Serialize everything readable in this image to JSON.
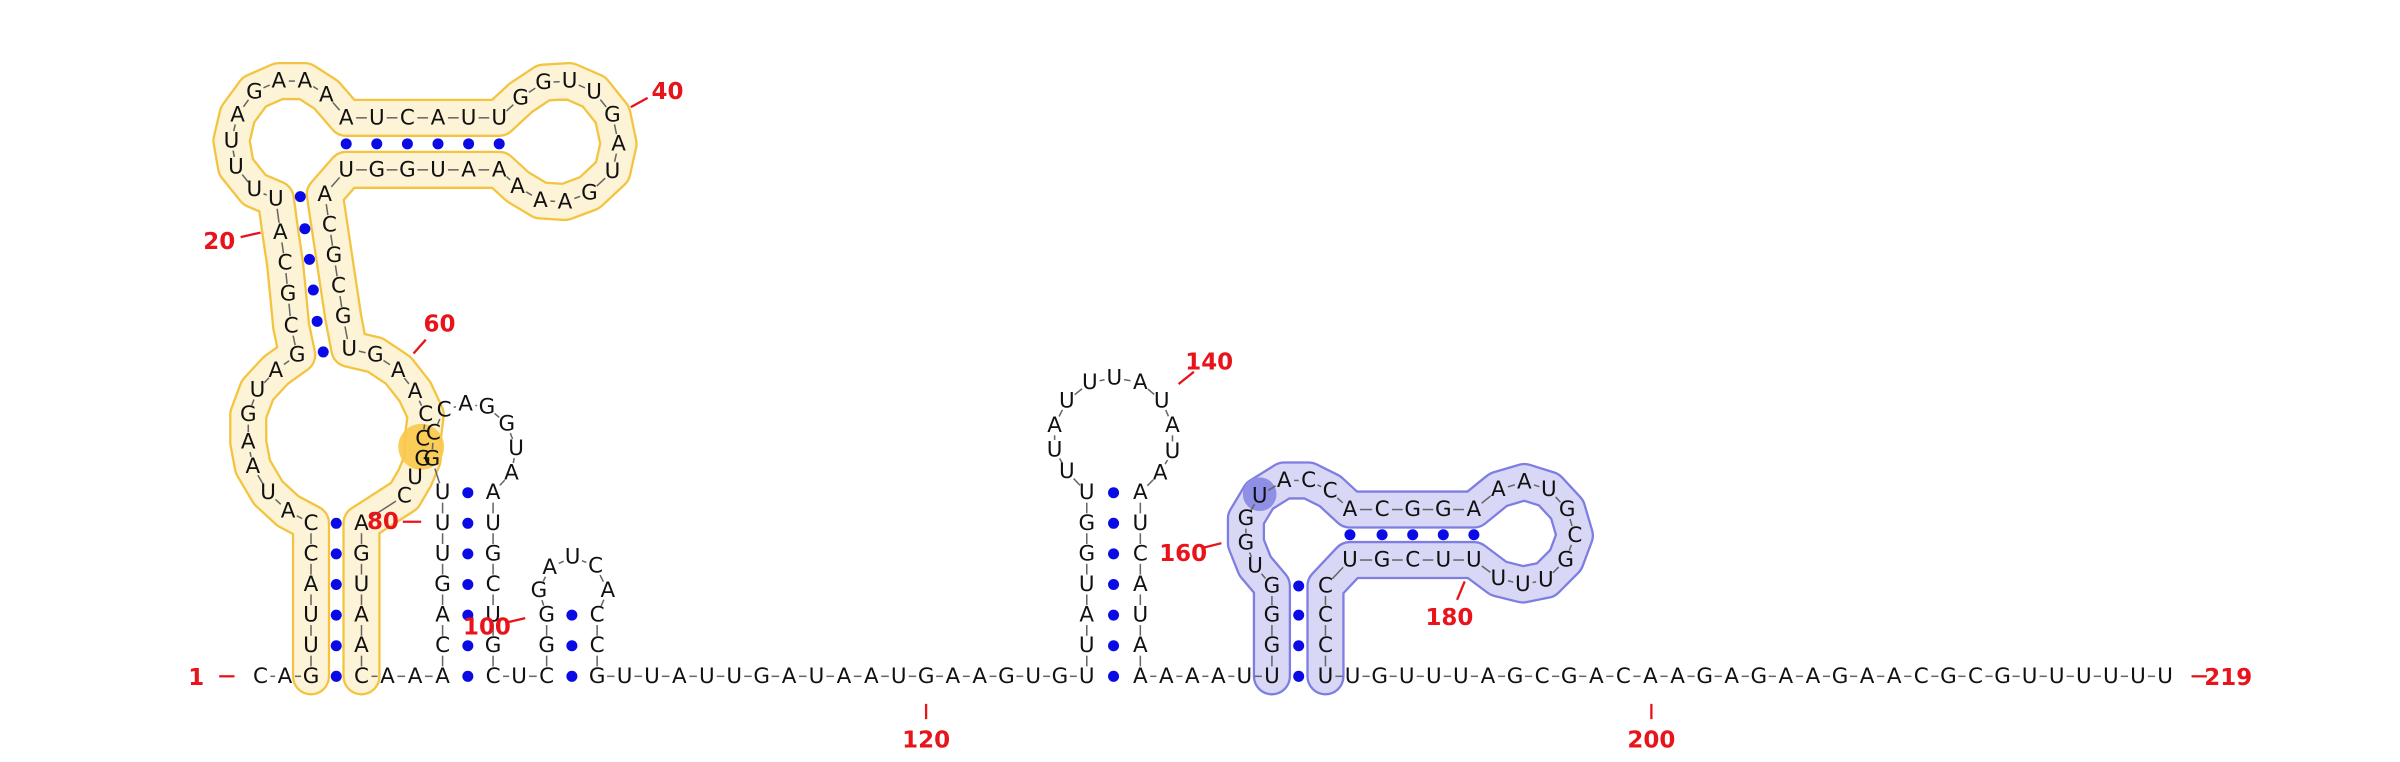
{
  "sequence": [
    "C",
    "A",
    "G",
    "U",
    "U",
    "A",
    "C",
    "C",
    "A",
    "U",
    "A",
    "A",
    "G",
    "U",
    "A",
    "G",
    "C",
    "G",
    "C",
    "A",
    "U",
    "U",
    "U",
    "U",
    "A",
    "G",
    "A",
    "A",
    "A",
    "A",
    "U",
    "C",
    "A",
    "U",
    "U",
    "G",
    "G",
    "U",
    "U",
    "G",
    "A",
    "U",
    "G",
    "A",
    "A",
    "A",
    "A",
    "A",
    "U",
    "G",
    "G",
    "U",
    "A",
    "C",
    "G",
    "C",
    "G",
    "U",
    "G",
    "A",
    "A",
    "C",
    "C",
    "G",
    "U",
    "C",
    "A",
    "G",
    "U",
    "A",
    "A",
    "C",
    "A",
    "A",
    "A",
    "C",
    "A",
    "G",
    "U",
    "U",
    "U",
    "G",
    "C",
    "C",
    "A",
    "G",
    "G",
    "U",
    "A",
    "A",
    "U",
    "G",
    "C",
    "U",
    "G",
    "C",
    "U",
    "C",
    "G",
    "G",
    "G",
    "A",
    "U",
    "C",
    "A",
    "C",
    "C",
    "G",
    "U",
    "U",
    "A",
    "U",
    "U",
    "G",
    "A",
    "U",
    "A",
    "A",
    "U",
    "G",
    "A",
    "A",
    "G",
    "U",
    "G",
    "U",
    "U",
    "A",
    "U",
    "G",
    "G",
    "U",
    "U",
    "U",
    "A",
    "U",
    "U",
    "U",
    "A",
    "U",
    "A",
    "U",
    "A",
    "A",
    "U",
    "C",
    "A",
    "U",
    "A",
    "A",
    "A",
    "A",
    "A",
    "U",
    "U",
    "G",
    "G",
    "G",
    "U",
    "G",
    "G",
    "U",
    "A",
    "C",
    "C",
    "A",
    "C",
    "G",
    "G",
    "A",
    "A",
    "A",
    "U",
    "G",
    "C",
    "G",
    "U",
    "U",
    "U",
    "U",
    "U",
    "C",
    "G",
    "U",
    "C",
    "C",
    "C",
    "U",
    "U",
    "G",
    "U",
    "U",
    "U",
    "A",
    "G",
    "C",
    "G",
    "A",
    "C",
    "A",
    "A",
    "G",
    "A",
    "G",
    "A",
    "A",
    "G",
    "A",
    "A",
    "C",
    "G",
    "C",
    "G",
    "U",
    "U",
    "U",
    "U",
    "U",
    "U"
  ],
  "position_labels": [
    1,
    20,
    40,
    60,
    80,
    100,
    120,
    140,
    160,
    180,
    200,
    219
  ]
}
